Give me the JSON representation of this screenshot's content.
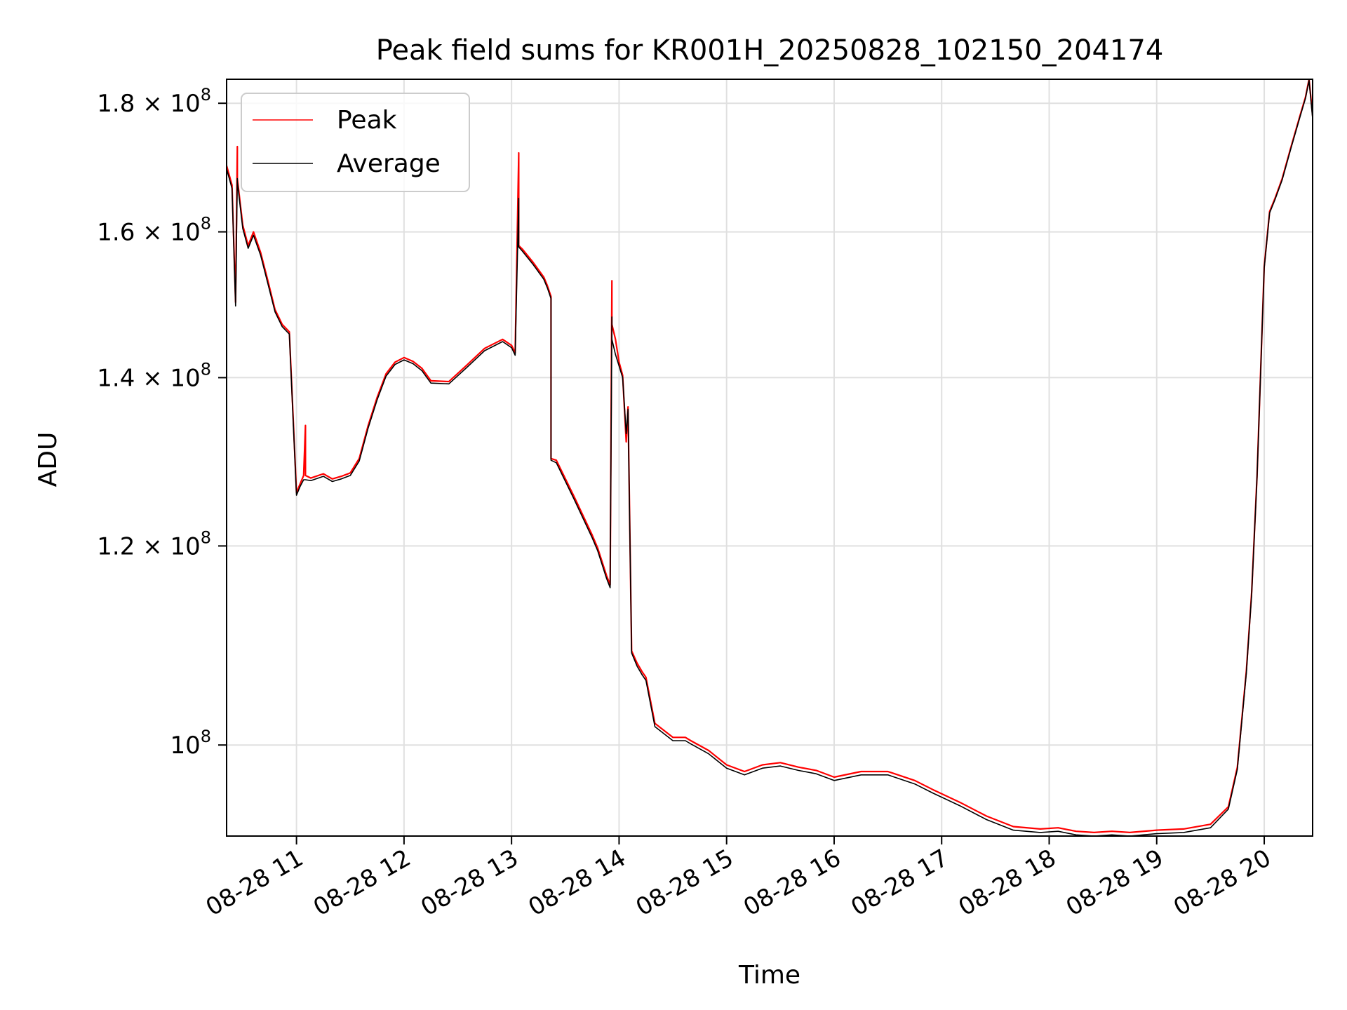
{
  "chart_data": {
    "type": "line",
    "title": "Peak field sums for KR001H_20250828_102150_204174",
    "xlabel": "Time",
    "ylabel": "ADU",
    "yscale": "log",
    "xlim": [
      "2025-08-28T10:21",
      "2025-08-28T20:27"
    ],
    "ylim": [
      92000000,
      184000000
    ],
    "x_ticks": [
      "08-28 11",
      "08-28 12",
      "08-28 13",
      "08-28 14",
      "08-28 15",
      "08-28 16",
      "08-28 17",
      "08-28 18",
      "08-28 19",
      "08-28 20"
    ],
    "y_ticks": [
      {
        "value": 100000000,
        "base": "",
        "exp": "8",
        "label": "10^8"
      },
      {
        "value": 120000000,
        "base": "1.2",
        "exp": "8",
        "label": "1.2×10^8"
      },
      {
        "value": 140000000,
        "base": "1.4",
        "exp": "8",
        "label": "1.4×10^8"
      },
      {
        "value": 160000000,
        "base": "1.6",
        "exp": "8",
        "label": "1.6×10^8"
      },
      {
        "value": 180000000,
        "base": "1.8",
        "exp": "8",
        "label": "1.8×10^8"
      }
    ],
    "grid": true,
    "legend_position": "upper-left",
    "series": [
      {
        "name": "Peak",
        "color": "#ff0000",
        "x": [
          "2025-08-28T10:21",
          "2025-08-28T10:24",
          "2025-08-28T10:26",
          "2025-08-28T10:27",
          "2025-08-28T10:27",
          "2025-08-28T10:30",
          "2025-08-28T10:33",
          "2025-08-28T10:36",
          "2025-08-28T10:40",
          "2025-08-28T10:44",
          "2025-08-28T10:48",
          "2025-08-28T10:52",
          "2025-08-28T10:56",
          "2025-08-28T11:00",
          "2025-08-28T11:00",
          "2025-08-28T11:02",
          "2025-08-28T11:04",
          "2025-08-28T11:05",
          "2025-08-28T11:05",
          "2025-08-28T11:08",
          "2025-08-28T11:15",
          "2025-08-28T11:20",
          "2025-08-28T11:25",
          "2025-08-28T11:30",
          "2025-08-28T11:35",
          "2025-08-28T11:40",
          "2025-08-28T11:45",
          "2025-08-28T11:50",
          "2025-08-28T11:55",
          "2025-08-28T12:00",
          "2025-08-28T12:05",
          "2025-08-28T12:10",
          "2025-08-28T12:15",
          "2025-08-28T12:25",
          "2025-08-28T12:35",
          "2025-08-28T12:45",
          "2025-08-28T12:55",
          "2025-08-28T13:00",
          "2025-08-28T13:02",
          "2025-08-28T13:04",
          "2025-08-28T13:04",
          "2025-08-28T13:06",
          "2025-08-28T13:12",
          "2025-08-28T13:18",
          "2025-08-28T13:20",
          "2025-08-28T13:22",
          "2025-08-28T13:22",
          "2025-08-28T13:25",
          "2025-08-28T13:35",
          "2025-08-28T13:45",
          "2025-08-28T13:48",
          "2025-08-28T13:53",
          "2025-08-28T13:55",
          "2025-08-28T13:56",
          "2025-08-28T13:56",
          "2025-08-28T13:58",
          "2025-08-28T14:00",
          "2025-08-28T14:02",
          "2025-08-28T14:04",
          "2025-08-28T14:05",
          "2025-08-28T14:07",
          "2025-08-28T14:10",
          "2025-08-28T14:13",
          "2025-08-28T14:15",
          "2025-08-28T14:20",
          "2025-08-28T14:30",
          "2025-08-28T14:37",
          "2025-08-28T14:40",
          "2025-08-28T14:50",
          "2025-08-28T15:00",
          "2025-08-28T15:10",
          "2025-08-28T15:20",
          "2025-08-28T15:30",
          "2025-08-28T15:40",
          "2025-08-28T15:50",
          "2025-08-28T16:00",
          "2025-08-28T16:15",
          "2025-08-28T16:30",
          "2025-08-28T16:45",
          "2025-08-28T16:55",
          "2025-08-28T17:10",
          "2025-08-28T17:25",
          "2025-08-28T17:40",
          "2025-08-28T17:55",
          "2025-08-28T18:05",
          "2025-08-28T18:15",
          "2025-08-28T18:25",
          "2025-08-28T18:35",
          "2025-08-28T18:45",
          "2025-08-28T19:00",
          "2025-08-28T19:15",
          "2025-08-28T19:30",
          "2025-08-28T19:40",
          "2025-08-28T19:45",
          "2025-08-28T19:50",
          "2025-08-28T19:53",
          "2025-08-28T19:56",
          "2025-08-28T20:00",
          "2025-08-28T20:03",
          "2025-08-28T20:06",
          "2025-08-28T20:10",
          "2025-08-28T20:15",
          "2025-08-28T20:20",
          "2025-08-28T20:23",
          "2025-08-28T20:25",
          "2025-08-28T20:27"
        ],
        "y": [
          170000000,
          167000000,
          150000000,
          173000000,
          168000000,
          161000000,
          158000000,
          160000000,
          157000000,
          153000000,
          149000000,
          147000000,
          146000000,
          126000000,
          126000000,
          127000000,
          128000000,
          134000000,
          128000000,
          127700000,
          128200000,
          127600000,
          127900000,
          128300000,
          130000000,
          134000000,
          137500000,
          140500000,
          142000000,
          142600000,
          142100000,
          141200000,
          139600000,
          139500000,
          141600000,
          143800000,
          145000000,
          144200000,
          143200000,
          172000000,
          158000000,
          157500000,
          155600000,
          153500000,
          152300000,
          150800000,
          130000000,
          129800000,
          125500000,
          121200000,
          119800000,
          116800000,
          115800000,
          153000000,
          147000000,
          145000000,
          142000000,
          140300000,
          132000000,
          136300000,
          109000000,
          107800000,
          106900000,
          106400000,
          102000000,
          100700000,
          100700000,
          100400000,
          99500000,
          98200000,
          97600000,
          98200000,
          98400000,
          98000000,
          97700000,
          97100000,
          97600000,
          97600000,
          96800000,
          96000000,
          94900000,
          93700000,
          92800000,
          92600000,
          92700000,
          92400000,
          92300000,
          92400000,
          92300000,
          92500000,
          92600000,
          93000000,
          94500000,
          98000000,
          107000000,
          115000000,
          128000000,
          155000000,
          163000000,
          165000000,
          168000000,
          173000000,
          178000000,
          181000000,
          184000000,
          178000000
        ]
      },
      {
        "name": "Average",
        "color": "#000000",
        "x": [
          "2025-08-28T10:21",
          "2025-08-28T10:24",
          "2025-08-28T10:26",
          "2025-08-28T10:27",
          "2025-08-28T10:27",
          "2025-08-28T10:30",
          "2025-08-28T10:33",
          "2025-08-28T10:36",
          "2025-08-28T10:40",
          "2025-08-28T10:44",
          "2025-08-28T10:48",
          "2025-08-28T10:52",
          "2025-08-28T10:56",
          "2025-08-28T11:00",
          "2025-08-28T11:00",
          "2025-08-28T11:02",
          "2025-08-28T11:04",
          "2025-08-28T11:05",
          "2025-08-28T11:05",
          "2025-08-28T11:08",
          "2025-08-28T11:15",
          "2025-08-28T11:20",
          "2025-08-28T11:25",
          "2025-08-28T11:30",
          "2025-08-28T11:35",
          "2025-08-28T11:40",
          "2025-08-28T11:45",
          "2025-08-28T11:50",
          "2025-08-28T11:55",
          "2025-08-28T12:00",
          "2025-08-28T12:05",
          "2025-08-28T12:10",
          "2025-08-28T12:15",
          "2025-08-28T12:25",
          "2025-08-28T12:35",
          "2025-08-28T12:45",
          "2025-08-28T12:55",
          "2025-08-28T13:00",
          "2025-08-28T13:02",
          "2025-08-28T13:04",
          "2025-08-28T13:04",
          "2025-08-28T13:06",
          "2025-08-28T13:12",
          "2025-08-28T13:18",
          "2025-08-28T13:20",
          "2025-08-28T13:22",
          "2025-08-28T13:22",
          "2025-08-28T13:25",
          "2025-08-28T13:35",
          "2025-08-28T13:45",
          "2025-08-28T13:48",
          "2025-08-28T13:53",
          "2025-08-28T13:55",
          "2025-08-28T13:56",
          "2025-08-28T13:56",
          "2025-08-28T13:58",
          "2025-08-28T14:00",
          "2025-08-28T14:02",
          "2025-08-28T14:04",
          "2025-08-28T14:05",
          "2025-08-28T14:07",
          "2025-08-28T14:10",
          "2025-08-28T14:13",
          "2025-08-28T14:15",
          "2025-08-28T14:20",
          "2025-08-28T14:30",
          "2025-08-28T14:37",
          "2025-08-28T14:40",
          "2025-08-28T14:50",
          "2025-08-28T15:00",
          "2025-08-28T15:10",
          "2025-08-28T15:20",
          "2025-08-28T15:30",
          "2025-08-28T15:40",
          "2025-08-28T15:50",
          "2025-08-28T16:00",
          "2025-08-28T16:15",
          "2025-08-28T16:30",
          "2025-08-28T16:45",
          "2025-08-28T16:55",
          "2025-08-28T17:10",
          "2025-08-28T17:25",
          "2025-08-28T17:40",
          "2025-08-28T17:55",
          "2025-08-28T18:05",
          "2025-08-28T18:15",
          "2025-08-28T18:25",
          "2025-08-28T18:35",
          "2025-08-28T18:45",
          "2025-08-28T19:00",
          "2025-08-28T19:15",
          "2025-08-28T19:30",
          "2025-08-28T19:40",
          "2025-08-28T19:45",
          "2025-08-28T19:50",
          "2025-08-28T19:53",
          "2025-08-28T19:56",
          "2025-08-28T20:00",
          "2025-08-28T20:03",
          "2025-08-28T20:06",
          "2025-08-28T20:10",
          "2025-08-28T20:15",
          "2025-08-28T20:20",
          "2025-08-28T20:23",
          "2025-08-28T20:25",
          "2025-08-28T20:27"
        ],
        "y": [
          169500000,
          166500000,
          149500000,
          168000000,
          167500000,
          160500000,
          157600000,
          159500000,
          156600000,
          152600000,
          148700000,
          146700000,
          145700000,
          125700000,
          125700000,
          126700000,
          127500000,
          127500000,
          127500000,
          127400000,
          127900000,
          127300000,
          127600000,
          128000000,
          129700000,
          133700000,
          137200000,
          140200000,
          141700000,
          142300000,
          141800000,
          140900000,
          139300000,
          139200000,
          141300000,
          143500000,
          144700000,
          143900000,
          142900000,
          165000000,
          157800000,
          157200000,
          155300000,
          153200000,
          152000000,
          150500000,
          129800000,
          129500000,
          125200000,
          120900000,
          119500000,
          116500000,
          115500000,
          148000000,
          145000000,
          143000000,
          141500000,
          140000000,
          133000000,
          136000000,
          108800000,
          107500000,
          106600000,
          106100000,
          101700000,
          100400000,
          100400000,
          100100000,
          99200000,
          97900000,
          97300000,
          97900000,
          98100000,
          97700000,
          97400000,
          96800000,
          97300000,
          97300000,
          96500000,
          95700000,
          94600000,
          93400000,
          92500000,
          92300000,
          92400000,
          92100000,
          92000000,
          92100000,
          92000000,
          92200000,
          92300000,
          92700000,
          94300000,
          97800000,
          106800000,
          114800000,
          127800000,
          154800000,
          162800000,
          164800000,
          167800000,
          172800000,
          177800000,
          180800000,
          183800000,
          177500000
        ]
      }
    ]
  }
}
